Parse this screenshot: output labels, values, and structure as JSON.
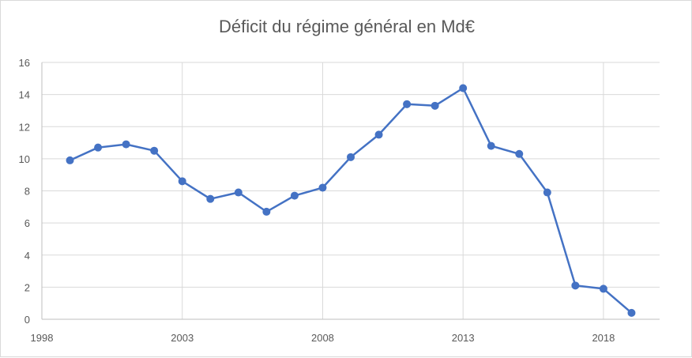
{
  "chart_data": {
    "type": "line",
    "title": "Déficit du régime général en Md€",
    "xlabel": "",
    "ylabel": "",
    "xlim": [
      1998,
      2020
    ],
    "ylim": [
      0,
      16
    ],
    "x_ticks": [
      "1998",
      "2003",
      "2008",
      "2013",
      "2018"
    ],
    "y_ticks": [
      "0",
      "2",
      "4",
      "6",
      "8",
      "10",
      "12",
      "14",
      "16"
    ],
    "grid": true,
    "legend": "none",
    "series": [
      {
        "color": "#4472c4",
        "x": [
          1999,
          2000,
          2001,
          2002,
          2003,
          2004,
          2005,
          2006,
          2007,
          2008,
          2009,
          2010,
          2011,
          2012,
          2013,
          2014,
          2015,
          2016,
          2017,
          2018,
          2019
        ],
        "values": [
          9.9,
          10.7,
          10.9,
          10.5,
          8.6,
          7.5,
          7.9,
          6.7,
          7.7,
          8.2,
          10.1,
          11.5,
          13.4,
          13.3,
          14.4,
          10.8,
          10.3,
          7.9,
          2.1,
          1.9,
          0.4
        ]
      }
    ]
  }
}
